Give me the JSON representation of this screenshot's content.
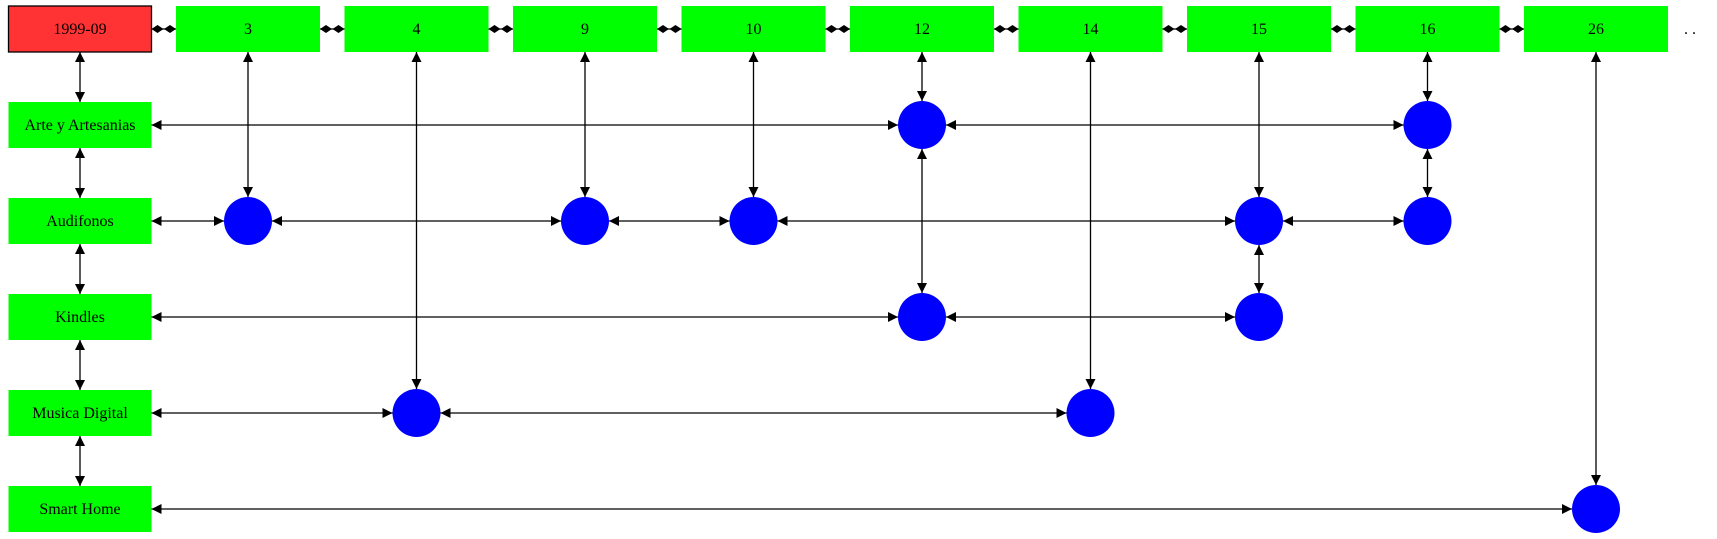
{
  "diagram": {
    "root": {
      "label": "1999-09",
      "color": "#ff3333"
    },
    "columns": [
      "3",
      "4",
      "9",
      "10",
      "12",
      "14",
      "15",
      "16",
      "26"
    ],
    "rows": [
      "Arte y Artesanias",
      "Audifonos",
      "Kindles",
      "Musica Digital",
      "Smart Home"
    ],
    "trailing_dots": ". .",
    "header_color": "#00ff00",
    "node_color": "#0000ff",
    "dots": [
      {
        "row": "Arte y Artesanias",
        "column": "12"
      },
      {
        "row": "Arte y Artesanias",
        "column": "16"
      },
      {
        "row": "Audifonos",
        "column": "3"
      },
      {
        "row": "Audifonos",
        "column": "9"
      },
      {
        "row": "Audifonos",
        "column": "10"
      },
      {
        "row": "Audifonos",
        "column": "15"
      },
      {
        "row": "Audifonos",
        "column": "16"
      },
      {
        "row": "Kindles",
        "column": "12"
      },
      {
        "row": "Kindles",
        "column": "15"
      },
      {
        "row": "Musica Digital",
        "column": "4"
      },
      {
        "row": "Musica Digital",
        "column": "14"
      },
      {
        "row": "Smart Home",
        "column": "26"
      }
    ]
  }
}
